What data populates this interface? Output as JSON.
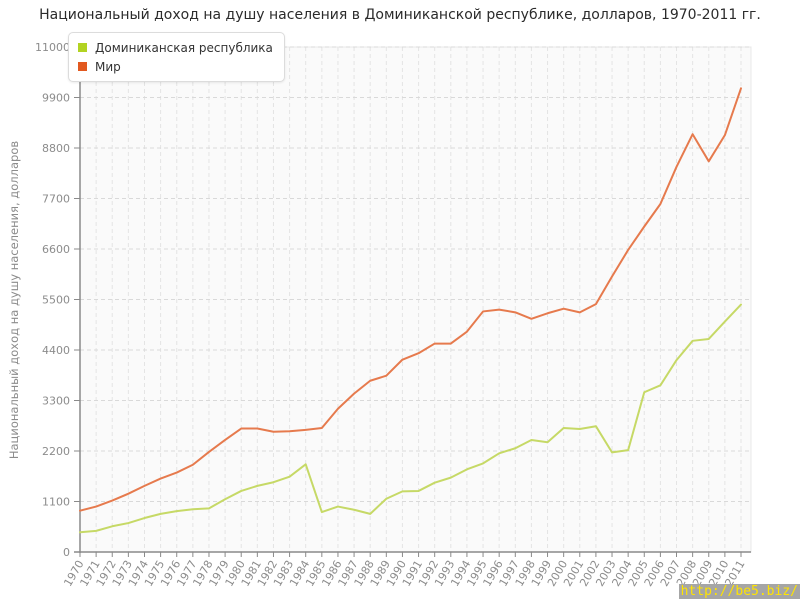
{
  "header": {
    "title": "Национальный доход на душу населения в Доминиканской республике, долларов, 1970-2011 гг."
  },
  "watermark": {
    "text": "http://be5.biz/",
    "background": "#a6a6a6",
    "color": "#ffe400"
  },
  "colors": {
    "plot_background": "#fafafa",
    "plot_border": "#e8e8e8",
    "grid_horizontal": "#d9d9d9",
    "grid_vertical": "#e4e4e4",
    "axis_line": "#8a8a8a",
    "tick_label": "#8c8c8c"
  },
  "chart_data": {
    "type": "line",
    "title": "Национальный доход на душу населения в Доминиканской республике, долларов, 1970-2011 гг.",
    "xlabel": "",
    "ylabel": "Национальный доход на душу населения, долларов",
    "ylim": [
      0,
      11000
    ],
    "ytick_step": 1100,
    "grid": true,
    "legend_position": "top-left",
    "x": [
      1970,
      1971,
      1972,
      1973,
      1974,
      1975,
      1976,
      1977,
      1978,
      1979,
      1980,
      1981,
      1982,
      1983,
      1984,
      1985,
      1986,
      1987,
      1988,
      1989,
      1990,
      1991,
      1992,
      1993,
      1994,
      1995,
      1996,
      1997,
      1998,
      1999,
      2000,
      2001,
      2002,
      2003,
      2004,
      2005,
      2006,
      2007,
      2008,
      2009,
      2010,
      2011
    ],
    "series": [
      {
        "name": "Доминиканская республика",
        "swatch_color": "#b2d322",
        "line_color": "#c6d966",
        "values": [
          430,
          460,
          560,
          630,
          740,
          830,
          890,
          930,
          950,
          1150,
          1330,
          1440,
          1520,
          1640,
          1910,
          870,
          990,
          920,
          830,
          1160,
          1320,
          1330,
          1510,
          1620,
          1800,
          1930,
          2150,
          2260,
          2440,
          2390,
          2700,
          2680,
          2740,
          2170,
          2220,
          3480,
          3630,
          4180,
          4600,
          4640,
          5020,
          5390
        ]
      },
      {
        "name": "Мир",
        "swatch_color": "#e2591f",
        "line_color": "#e67a4d",
        "values": [
          900,
          990,
          1120,
          1270,
          1440,
          1600,
          1730,
          1900,
          2180,
          2440,
          2690,
          2690,
          2620,
          2630,
          2660,
          2700,
          3120,
          3450,
          3730,
          3840,
          4190,
          4330,
          4540,
          4540,
          4800,
          5240,
          5280,
          5220,
          5080,
          5200,
          5300,
          5220,
          5400,
          6000,
          6580,
          7090,
          7580,
          8390,
          9100,
          8510,
          9080,
          10100
        ]
      }
    ]
  }
}
